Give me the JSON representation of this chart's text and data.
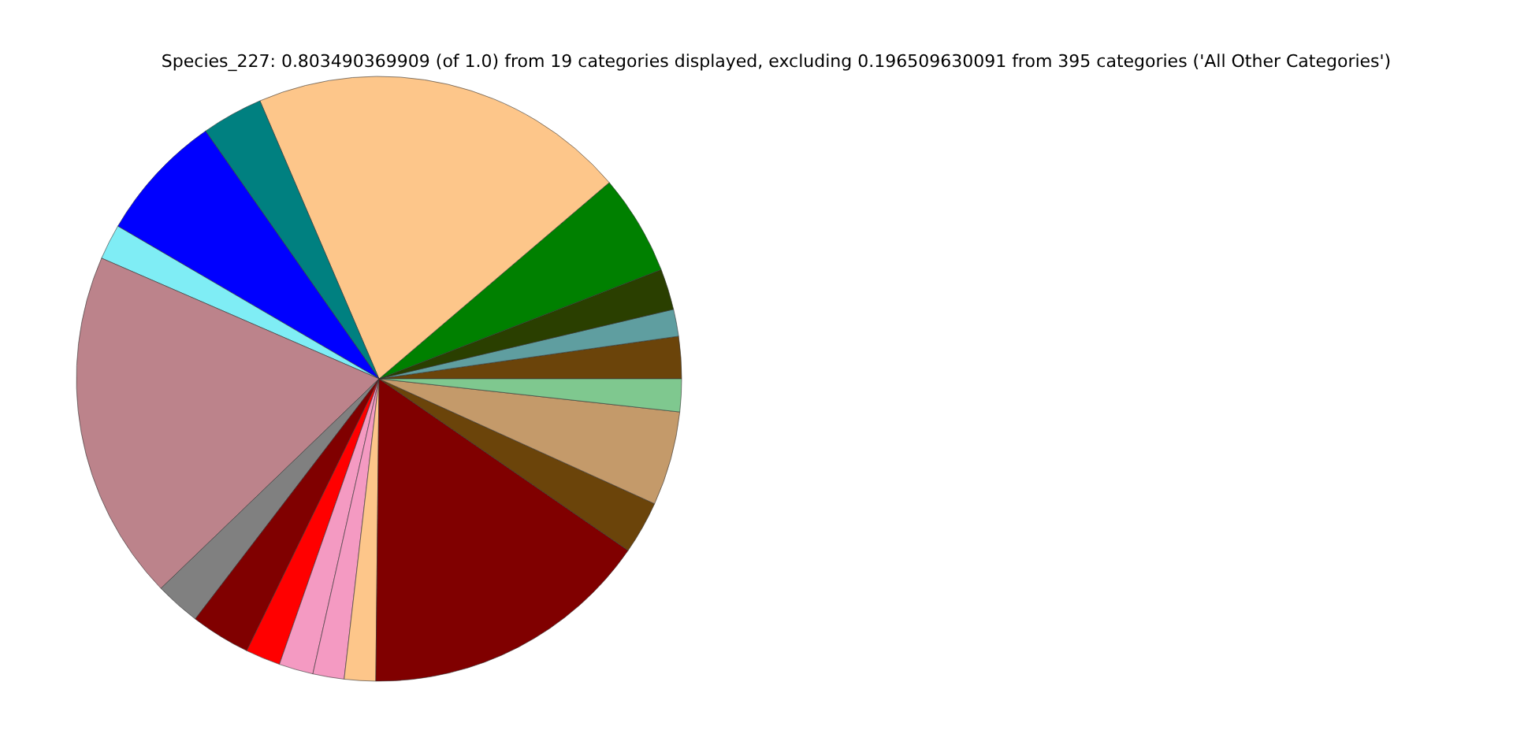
{
  "chart_data": {
    "type": "pie",
    "title": "Species_227: 0.803490369909 (of 1.0) from 19 categories displayed, excluding 0.196509630091 from 395 categories ('All Other Categories')",
    "categories": [
      null,
      null,
      null,
      null,
      null,
      null,
      null,
      null,
      null,
      null,
      null,
      null,
      null,
      null,
      null,
      null,
      null,
      null,
      null
    ],
    "values": [
      2.25,
      1.44,
      2.19,
      5.36,
      20.2,
      3.28,
      6.86,
      1.89,
      18.72,
      2.42,
      3.19,
      1.86,
      1.83,
      1.67,
      1.67,
      15.56,
      2.83,
      5.03,
      1.75
    ],
    "colors": [
      "#6b440a",
      "#5f9ea0",
      "#2a3f00",
      "#008000",
      "#fdc68a",
      "#008080",
      "#0000ff",
      "#7fedf5",
      "#bc838b",
      "#808080",
      "#800000",
      "#ff0000",
      "#f49ac2",
      "#f49ac2",
      "#fdc68a",
      "#800000",
      "#6b440a",
      "#c49a6a",
      "#7fc88f"
    ]
  }
}
